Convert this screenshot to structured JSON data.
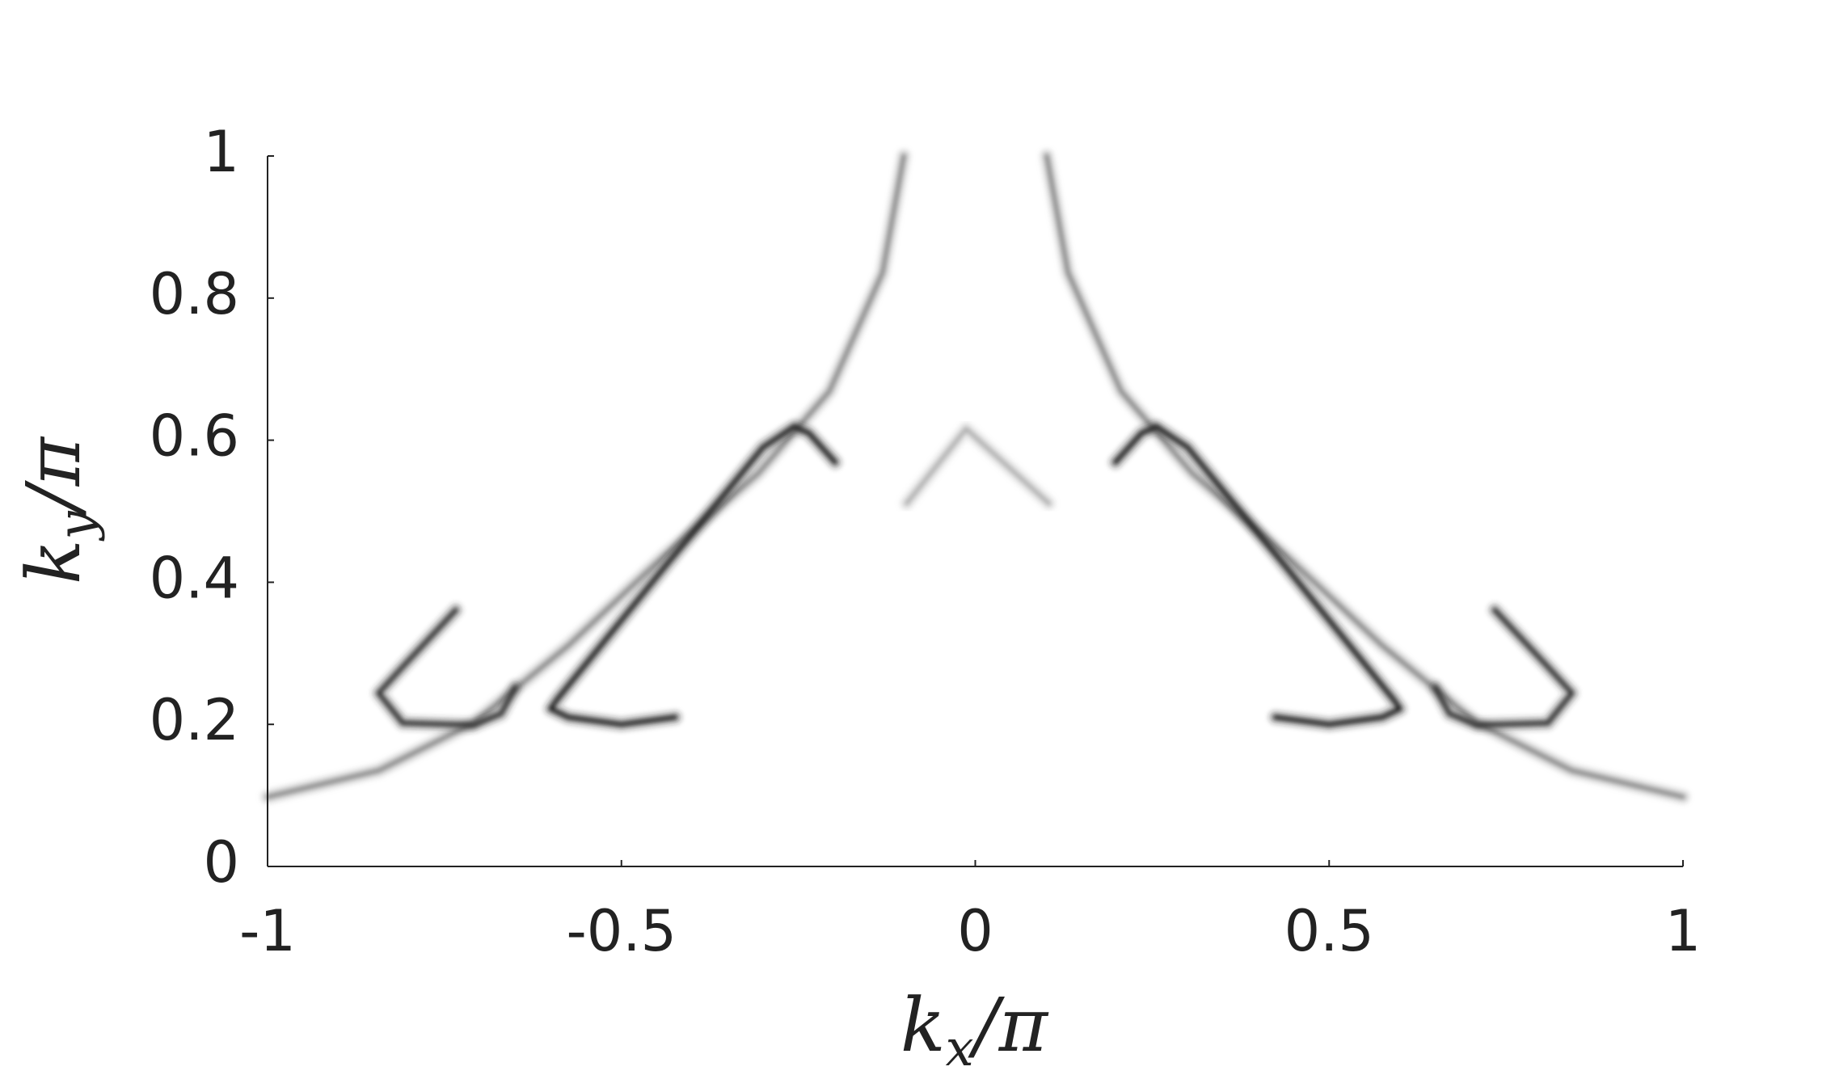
{
  "chart_data": {
    "type": "line",
    "xlabel": {
      "base": "k",
      "sub": "x",
      "rest": "/π"
    },
    "ylabel": {
      "base": "k",
      "sub": "y",
      "rest": "/π"
    },
    "xlim": [
      -1,
      1
    ],
    "xticks": [
      -1,
      -0.5,
      0,
      0.5,
      1
    ],
    "ylim": [
      0,
      1
    ],
    "yticks": [
      0,
      0.2,
      0.4,
      0.6,
      0.8,
      1
    ],
    "grid": false,
    "series": [
      {
        "color": "#8a8a8a",
        "x": [
          -0.101,
          -0.131,
          -0.206,
          -0.307,
          -0.441,
          -0.575,
          -0.709,
          -0.843,
          -1
        ],
        "y": [
          1,
          0.836,
          0.669,
          0.553,
          0.436,
          0.311,
          0.202,
          0.135,
          0.098
        ]
      },
      {
        "color": "#8a8a8a",
        "x": [
          0.101,
          0.131,
          0.206,
          0.307,
          0.441,
          0.575,
          0.709,
          0.843,
          1
        ],
        "y": [
          1,
          0.836,
          0.669,
          0.553,
          0.436,
          0.311,
          0.202,
          0.135,
          0.098
        ]
      },
      {
        "color": "#222222",
        "x": [
          -0.198,
          -0.235,
          -0.256,
          -0.3,
          -0.441,
          -0.591,
          -0.6,
          -0.575,
          -0.5,
          -0.424
        ],
        "y": [
          0.569,
          0.61,
          0.619,
          0.59,
          0.419,
          0.235,
          0.222,
          0.21,
          0.2,
          0.21
        ]
      },
      {
        "color": "#222222",
        "x": [
          0.198,
          0.235,
          0.256,
          0.3,
          0.441,
          0.591,
          0.6,
          0.575,
          0.5,
          0.424
        ],
        "y": [
          0.569,
          0.61,
          0.619,
          0.59,
          0.419,
          0.235,
          0.222,
          0.21,
          0.2,
          0.21
        ]
      },
      {
        "color": "#333333",
        "x": [
          -0.734,
          -0.81,
          -0.843,
          -0.809,
          -0.709,
          -0.67,
          -0.65
        ],
        "y": [
          0.361,
          0.28,
          0.244,
          0.202,
          0.199,
          0.215,
          0.252
        ]
      },
      {
        "color": "#333333",
        "x": [
          0.734,
          0.81,
          0.843,
          0.809,
          0.709,
          0.67,
          0.65
        ],
        "y": [
          0.361,
          0.28,
          0.244,
          0.202,
          0.199,
          0.215,
          0.252
        ]
      },
      {
        "color": "#b0b0b0",
        "x": [
          -0.097,
          -0.013,
          0.104
        ],
        "y": [
          0.511,
          0.616,
          0.511
        ]
      }
    ]
  }
}
